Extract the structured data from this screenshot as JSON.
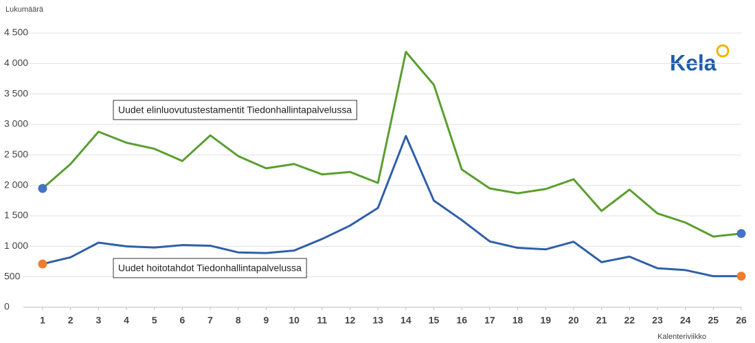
{
  "chart_data": {
    "type": "line",
    "y_axis_label": "Lukumäärä",
    "x_axis_label": "Kalenteriviikko",
    "logo": "Kela",
    "x": [
      1,
      2,
      3,
      4,
      5,
      6,
      7,
      8,
      9,
      10,
      11,
      12,
      13,
      14,
      15,
      16,
      17,
      18,
      19,
      20,
      21,
      22,
      23,
      24,
      25,
      26
    ],
    "xlim": [
      1,
      26
    ],
    "xticks": [
      1,
      2,
      3,
      4,
      5,
      6,
      7,
      8,
      9,
      10,
      11,
      12,
      13,
      14,
      15,
      16,
      17,
      18,
      19,
      20,
      21,
      22,
      23,
      24,
      25,
      26
    ],
    "ylim": [
      0,
      4500
    ],
    "yticks": [
      0,
      500,
      {
        "value": 1000,
        "label": "1 000"
      },
      {
        "value": 1500,
        "label": "1 500"
      },
      {
        "value": 2000,
        "label": "2 000"
      },
      {
        "value": 2500,
        "label": "2 500"
      },
      {
        "value": 3000,
        "label": "3 000"
      },
      {
        "value": 3500,
        "label": "3 500"
      },
      {
        "value": 4000,
        "label": "4 000"
      },
      {
        "value": 4500,
        "label": "4 500"
      }
    ],
    "grid": true,
    "series": [
      {
        "name": "Uudet elinluovutustestamentit Tiedonhallintapalvelussa",
        "color": "#5a9e2f",
        "marker_color": "#4472c4",
        "values": [
          1950,
          2350,
          2880,
          2700,
          2600,
          2400,
          2820,
          2480,
          2280,
          2350,
          2180,
          2220,
          2040,
          4190,
          3650,
          2260,
          1950,
          1870,
          1940,
          2100,
          1580,
          1930,
          1540,
          1390,
          1160,
          1210
        ]
      },
      {
        "name": "Uudet hoitotahdot Tiedonhallintapalvelussa",
        "color": "#2f5fa8",
        "marker_color": "#ed7d31",
        "values": [
          710,
          820,
          1060,
          1000,
          980,
          1020,
          1010,
          900,
          890,
          930,
          1120,
          1340,
          1630,
          2810,
          1750,
          1430,
          1080,
          975,
          950,
          1075,
          740,
          830,
          640,
          610,
          510,
          510
        ]
      }
    ]
  }
}
